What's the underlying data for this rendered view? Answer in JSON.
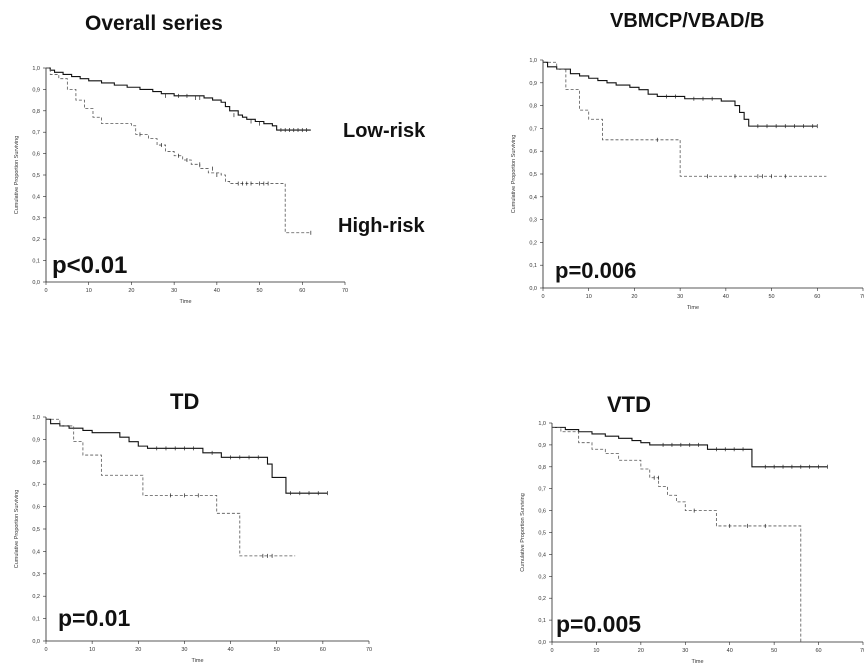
{
  "chart_data": [
    {
      "type": "line",
      "title": "Overall series",
      "xlabel": "Time",
      "ylabel": "Cumulative Proportion Surviving",
      "xlim": [
        0,
        70
      ],
      "ylim": [
        0,
        1.0
      ],
      "x_ticks": [
        "0",
        "10",
        "20",
        "30",
        "40",
        "50",
        "60",
        "70"
      ],
      "y_ticks": [
        "0,0",
        "0,1",
        "0,2",
        "0,3",
        "0,4",
        "0,5",
        "0,6",
        "0,7",
        "0,8",
        "0,9",
        "1,0"
      ],
      "annotation": "p<0.01",
      "series": [
        {
          "name": "Low-risk",
          "style": "solid",
          "points": [
            [
              0,
              1.0
            ],
            [
              1,
              0.99
            ],
            [
              2,
              0.98
            ],
            [
              4,
              0.97
            ],
            [
              6,
              0.96
            ],
            [
              8,
              0.95
            ],
            [
              10,
              0.94
            ],
            [
              13,
              0.93
            ],
            [
              16,
              0.92
            ],
            [
              19,
              0.91
            ],
            [
              22,
              0.9
            ],
            [
              25,
              0.89
            ],
            [
              27,
              0.88
            ],
            [
              30,
              0.87
            ],
            [
              34,
              0.87
            ],
            [
              37,
              0.86
            ],
            [
              39,
              0.85
            ],
            [
              41,
              0.84
            ],
            [
              42,
              0.82
            ],
            [
              43,
              0.8
            ],
            [
              45,
              0.78
            ],
            [
              46,
              0.77
            ],
            [
              47,
              0.76
            ],
            [
              49,
              0.75
            ],
            [
              51,
              0.74
            ],
            [
              53,
              0.73
            ],
            [
              54,
              0.71
            ],
            [
              62,
              0.71
            ]
          ],
          "censored": [
            [
              28,
              0.87
            ],
            [
              31,
              0.87
            ],
            [
              33,
              0.87
            ],
            [
              35,
              0.86
            ],
            [
              36,
              0.86
            ],
            [
              44,
              0.78
            ],
            [
              48,
              0.75
            ],
            [
              50,
              0.74
            ],
            [
              55,
              0.71
            ],
            [
              56,
              0.71
            ],
            [
              57,
              0.71
            ],
            [
              58,
              0.71
            ],
            [
              59,
              0.71
            ],
            [
              60,
              0.71
            ],
            [
              61,
              0.71
            ]
          ]
        },
        {
          "name": "High-risk",
          "style": "dashed",
          "points": [
            [
              0,
              1.0
            ],
            [
              1,
              0.97
            ],
            [
              3,
              0.95
            ],
            [
              5,
              0.9
            ],
            [
              7,
              0.85
            ],
            [
              9,
              0.81
            ],
            [
              11,
              0.77
            ],
            [
              13,
              0.74
            ],
            [
              20,
              0.73
            ],
            [
              21,
              0.69
            ],
            [
              24,
              0.67
            ],
            [
              26,
              0.64
            ],
            [
              28,
              0.61
            ],
            [
              30,
              0.59
            ],
            [
              32,
              0.57
            ],
            [
              34,
              0.55
            ],
            [
              36,
              0.53
            ],
            [
              38,
              0.51
            ],
            [
              41,
              0.5
            ],
            [
              42,
              0.47
            ],
            [
              43,
              0.46
            ],
            [
              55,
              0.46
            ],
            [
              56,
              0.23
            ],
            [
              62,
              0.23
            ]
          ],
          "censored": [
            [
              22,
              0.69
            ],
            [
              27,
              0.64
            ],
            [
              31,
              0.59
            ],
            [
              33,
              0.57
            ],
            [
              36,
              0.55
            ],
            [
              39,
              0.53
            ],
            [
              40,
              0.5
            ],
            [
              45,
              0.46
            ],
            [
              46,
              0.46
            ],
            [
              47,
              0.46
            ],
            [
              48,
              0.46
            ],
            [
              50,
              0.46
            ],
            [
              51,
              0.46
            ],
            [
              52,
              0.46
            ],
            [
              62,
              0.23
            ]
          ]
        }
      ]
    },
    {
      "type": "line",
      "title": "VBMCP/VBAD/B",
      "xlabel": "Time",
      "ylabel": "Cumulative Proportion Surviving",
      "xlim": [
        0,
        70
      ],
      "ylim": [
        0,
        1.0
      ],
      "x_ticks": [
        "0",
        "10",
        "20",
        "30",
        "40",
        "50",
        "60",
        "70"
      ],
      "y_ticks": [
        "0,0",
        "0,1",
        "0,2",
        "0,3",
        "0,4",
        "0,5",
        "0,6",
        "0,7",
        "0,8",
        "0,9",
        "1,0"
      ],
      "annotation": "p=0.006",
      "series": [
        {
          "style": "solid",
          "points": [
            [
              0,
              0.99
            ],
            [
              1,
              0.97
            ],
            [
              3,
              0.96
            ],
            [
              6,
              0.94
            ],
            [
              8,
              0.93
            ],
            [
              10,
              0.92
            ],
            [
              12,
              0.91
            ],
            [
              14,
              0.9
            ],
            [
              16,
              0.89
            ],
            [
              19,
              0.88
            ],
            [
              21,
              0.87
            ],
            [
              23,
              0.85
            ],
            [
              25,
              0.84
            ],
            [
              30,
              0.84
            ],
            [
              31,
              0.83
            ],
            [
              38,
              0.83
            ],
            [
              39,
              0.82
            ],
            [
              42,
              0.8
            ],
            [
              43,
              0.77
            ],
            [
              44,
              0.74
            ],
            [
              45,
              0.71
            ],
            [
              60,
              0.71
            ]
          ],
          "censored": [
            [
              27,
              0.84
            ],
            [
              29,
              0.84
            ],
            [
              33,
              0.83
            ],
            [
              35,
              0.83
            ],
            [
              37,
              0.83
            ],
            [
              47,
              0.71
            ],
            [
              49,
              0.71
            ],
            [
              51,
              0.71
            ],
            [
              53,
              0.71
            ],
            [
              55,
              0.71
            ],
            [
              57,
              0.71
            ],
            [
              59,
              0.71
            ],
            [
              60,
              0.71
            ]
          ]
        },
        {
          "style": "dashed",
          "points": [
            [
              0,
              0.99
            ],
            [
              3,
              0.96
            ],
            [
              5,
              0.87
            ],
            [
              8,
              0.78
            ],
            [
              10,
              0.74
            ],
            [
              13,
              0.65
            ],
            [
              29,
              0.65
            ],
            [
              30,
              0.49
            ],
            [
              62,
              0.49
            ]
          ],
          "censored": [
            [
              25,
              0.65
            ],
            [
              36,
              0.49
            ],
            [
              42,
              0.49
            ],
            [
              47,
              0.49
            ],
            [
              48,
              0.49
            ],
            [
              50,
              0.49
            ],
            [
              53,
              0.49
            ]
          ]
        }
      ]
    },
    {
      "type": "line",
      "title": "TD",
      "xlabel": "Time",
      "ylabel": "Cumulative Proportion Surviving",
      "xlim": [
        0,
        70
      ],
      "ylim": [
        0,
        1.0
      ],
      "x_ticks": [
        "0",
        "10",
        "20",
        "30",
        "40",
        "50",
        "60",
        "70"
      ],
      "y_ticks": [
        "0,0",
        "0,1",
        "0,2",
        "0,3",
        "0,4",
        "0,5",
        "0,6",
        "0,7",
        "0,8",
        "0,9",
        "1,0"
      ],
      "annotation": "p=0.01",
      "series": [
        {
          "style": "solid",
          "points": [
            [
              0,
              0.99
            ],
            [
              1,
              0.97
            ],
            [
              3,
              0.96
            ],
            [
              5,
              0.95
            ],
            [
              8,
              0.94
            ],
            [
              10,
              0.93
            ],
            [
              14,
              0.93
            ],
            [
              16,
              0.91
            ],
            [
              18,
              0.89
            ],
            [
              20,
              0.87
            ],
            [
              22,
              0.86
            ],
            [
              33,
              0.86
            ],
            [
              34,
              0.84
            ],
            [
              37,
              0.84
            ],
            [
              38,
              0.82
            ],
            [
              47,
              0.82
            ],
            [
              48,
              0.79
            ],
            [
              49,
              0.73
            ],
            [
              51,
              0.73
            ],
            [
              52,
              0.66
            ],
            [
              61,
              0.66
            ]
          ],
          "censored": [
            [
              24,
              0.86
            ],
            [
              26,
              0.86
            ],
            [
              28,
              0.86
            ],
            [
              30,
              0.86
            ],
            [
              32,
              0.86
            ],
            [
              36,
              0.84
            ],
            [
              40,
              0.82
            ],
            [
              42,
              0.82
            ],
            [
              44,
              0.82
            ],
            [
              46,
              0.82
            ],
            [
              53,
              0.66
            ],
            [
              55,
              0.66
            ],
            [
              57,
              0.66
            ],
            [
              59,
              0.66
            ],
            [
              61,
              0.66
            ]
          ]
        },
        {
          "style": "dashed",
          "points": [
            [
              0,
              0.99
            ],
            [
              3,
              0.96
            ],
            [
              6,
              0.89
            ],
            [
              8,
              0.83
            ],
            [
              12,
              0.74
            ],
            [
              20,
              0.74
            ],
            [
              21,
              0.65
            ],
            [
              36,
              0.65
            ],
            [
              37,
              0.57
            ],
            [
              41,
              0.57
            ],
            [
              42,
              0.38
            ],
            [
              54,
              0.38
            ]
          ],
          "censored": [
            [
              27,
              0.65
            ],
            [
              30,
              0.65
            ],
            [
              33,
              0.65
            ],
            [
              47,
              0.38
            ],
            [
              48,
              0.38
            ],
            [
              49,
              0.38
            ]
          ]
        }
      ]
    },
    {
      "type": "line",
      "title": "VTD",
      "xlabel": "Time",
      "ylabel": "Cumulative Proportion Surviving",
      "xlim": [
        0,
        70
      ],
      "ylim": [
        0,
        1.0
      ],
      "x_ticks": [
        "0",
        "10",
        "20",
        "30",
        "40",
        "50",
        "60",
        "70"
      ],
      "y_ticks": [
        "0,0",
        "0,1",
        "0,2",
        "0,3",
        "0,4",
        "0,5",
        "0,6",
        "0,7",
        "0,8",
        "0,9",
        "1,0"
      ],
      "annotation": "p=0.005",
      "series": [
        {
          "style": "solid",
          "points": [
            [
              0,
              0.98
            ],
            [
              3,
              0.97
            ],
            [
              6,
              0.96
            ],
            [
              9,
              0.95
            ],
            [
              12,
              0.94
            ],
            [
              15,
              0.93
            ],
            [
              18,
              0.92
            ],
            [
              20,
              0.91
            ],
            [
              22,
              0.9
            ],
            [
              34,
              0.9
            ],
            [
              35,
              0.88
            ],
            [
              44,
              0.88
            ],
            [
              45,
              0.8
            ],
            [
              62,
              0.8
            ]
          ],
          "censored": [
            [
              25,
              0.9
            ],
            [
              27,
              0.9
            ],
            [
              29,
              0.9
            ],
            [
              31,
              0.9
            ],
            [
              33,
              0.9
            ],
            [
              37,
              0.88
            ],
            [
              39,
              0.88
            ],
            [
              41,
              0.88
            ],
            [
              43,
              0.88
            ],
            [
              48,
              0.8
            ],
            [
              50,
              0.8
            ],
            [
              52,
              0.8
            ],
            [
              54,
              0.8
            ],
            [
              56,
              0.8
            ],
            [
              58,
              0.8
            ],
            [
              60,
              0.8
            ],
            [
              62,
              0.8
            ]
          ]
        },
        {
          "style": "dashed",
          "points": [
            [
              0,
              0.98
            ],
            [
              2,
              0.96
            ],
            [
              6,
              0.91
            ],
            [
              9,
              0.88
            ],
            [
              12,
              0.86
            ],
            [
              15,
              0.83
            ],
            [
              19,
              0.83
            ],
            [
              20,
              0.79
            ],
            [
              22,
              0.75
            ],
            [
              24,
              0.71
            ],
            [
              26,
              0.67
            ],
            [
              28,
              0.64
            ],
            [
              30,
              0.6
            ],
            [
              35,
              0.6
            ],
            [
              37,
              0.53
            ],
            [
              55,
              0.53
            ],
            [
              56,
              0.0
            ]
          ],
          "censored": [
            [
              23,
              0.75
            ],
            [
              24,
              0.75
            ],
            [
              32,
              0.6
            ],
            [
              40,
              0.53
            ],
            [
              44,
              0.53
            ],
            [
              48,
              0.53
            ]
          ]
        }
      ]
    }
  ]
}
